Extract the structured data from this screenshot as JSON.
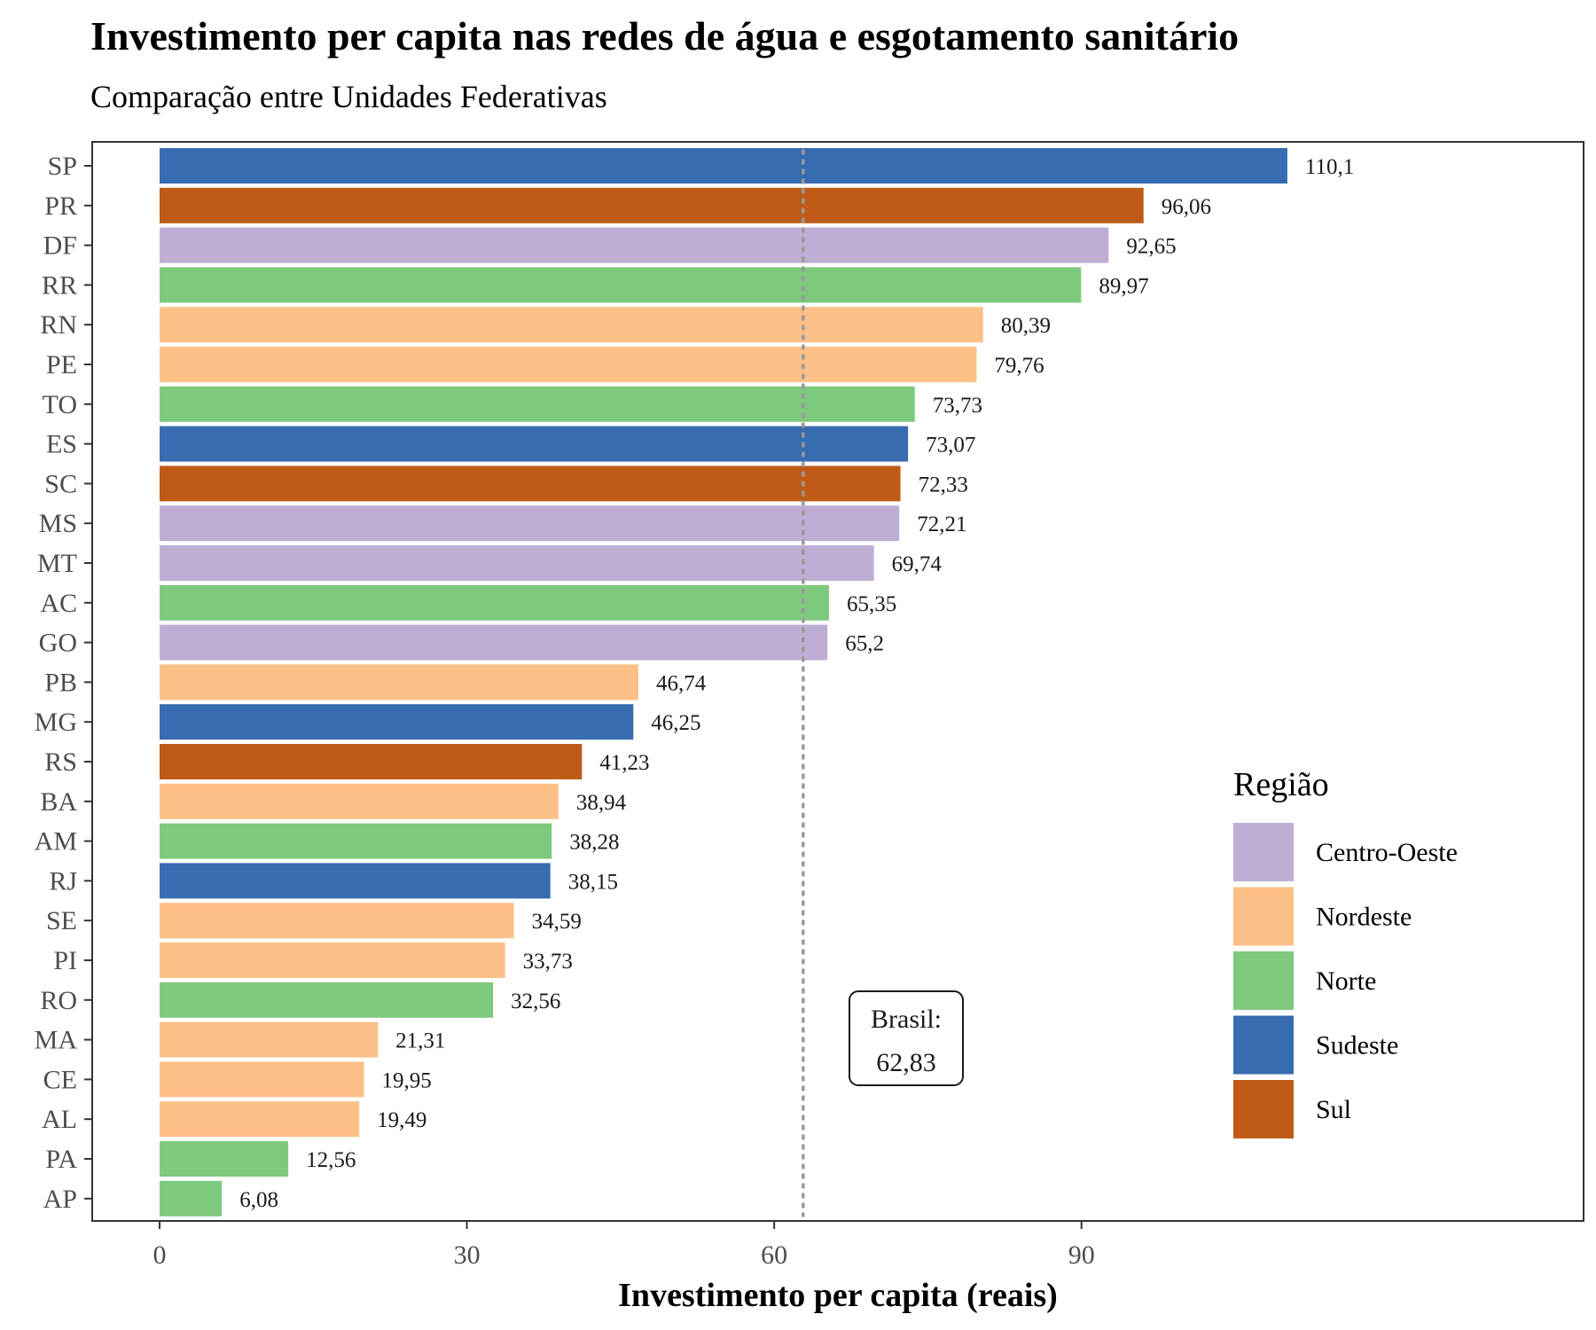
{
  "chart_data": {
    "type": "bar",
    "orientation": "horizontal",
    "title": "Investimento per capita nas redes de água e esgotamento sanitário",
    "subtitle": "Comparação entre Unidades Federativas",
    "xlabel": "Investimento per capita (reais)",
    "ylabel": "",
    "xlim": [
      -5.5,
      112
    ],
    "x_ticks": [
      "0",
      "30",
      "60",
      "90"
    ],
    "x_tick_values": [
      0,
      30,
      60,
      90
    ],
    "grid": false,
    "legend_position": "right",
    "legend": {
      "title": "Região",
      "entries": [
        {
          "name": "Centro-Oeste",
          "color": "#BEAED4"
        },
        {
          "name": "Nordeste",
          "color": "#FDC086"
        },
        {
          "name": "Norte",
          "color": "#7FC97F"
        },
        {
          "name": "Sudeste",
          "color": "#386CB0"
        },
        {
          "name": "Sul",
          "color": "#BF5B17"
        }
      ]
    },
    "reference_line": {
      "value": 62.83,
      "label_line1": "Brasil:",
      "label_line2": "62,83"
    },
    "categories": [
      "SP",
      "PR",
      "DF",
      "RR",
      "RN",
      "PE",
      "TO",
      "ES",
      "SC",
      "MS",
      "MT",
      "AC",
      "GO",
      "PB",
      "MG",
      "RS",
      "BA",
      "AM",
      "RJ",
      "SE",
      "PI",
      "RO",
      "MA",
      "CE",
      "AL",
      "PA",
      "AP"
    ],
    "values": [
      110.1,
      96.06,
      92.65,
      89.97,
      80.39,
      79.76,
      73.73,
      73.07,
      72.33,
      72.21,
      69.74,
      65.35,
      65.2,
      46.74,
      46.25,
      41.23,
      38.94,
      38.28,
      38.15,
      34.59,
      33.73,
      32.56,
      21.31,
      19.95,
      19.49,
      12.56,
      6.08
    ],
    "value_labels": [
      "110,1",
      "96,06",
      "92,65",
      "89,97",
      "80,39",
      "79,76",
      "73,73",
      "73,07",
      "72,33",
      "72,21",
      "69,74",
      "65,35",
      "65,2",
      "46,74",
      "46,25",
      "41,23",
      "38,94",
      "38,28",
      "38,15",
      "34,59",
      "33,73",
      "32,56",
      "21,31",
      "19,95",
      "19,49",
      "12,56",
      "6,08"
    ],
    "regions": [
      "Sudeste",
      "Sul",
      "Centro-Oeste",
      "Norte",
      "Nordeste",
      "Nordeste",
      "Norte",
      "Sudeste",
      "Sul",
      "Centro-Oeste",
      "Centro-Oeste",
      "Norte",
      "Centro-Oeste",
      "Nordeste",
      "Sudeste",
      "Sul",
      "Nordeste",
      "Norte",
      "Sudeste",
      "Nordeste",
      "Nordeste",
      "Norte",
      "Nordeste",
      "Nordeste",
      "Nordeste",
      "Norte",
      "Norte"
    ]
  }
}
